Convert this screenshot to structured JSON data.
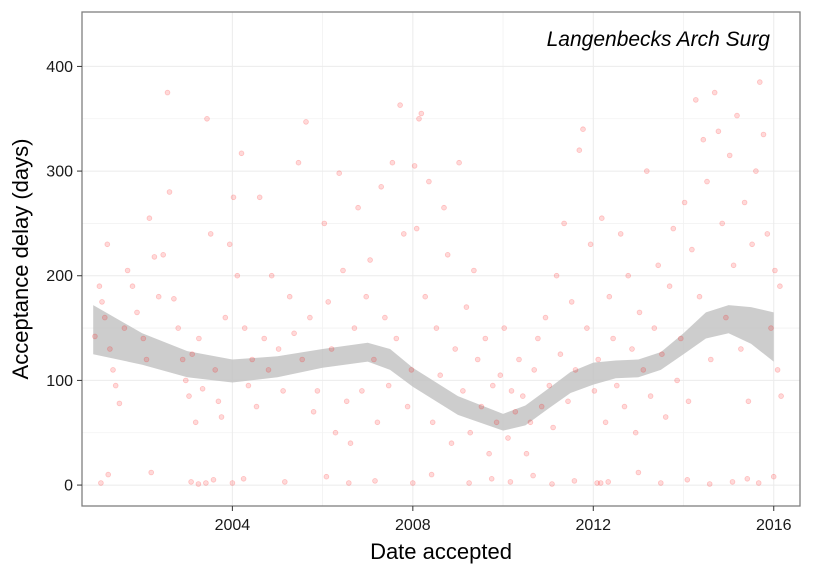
{
  "chart_data": {
    "type": "scatter",
    "title": "",
    "annotation": "Langenbecks Arch Surg",
    "xlabel": "Date accepted",
    "ylabel": "Acceptance delay (days)",
    "xlim": [
      "2000-09-01",
      "2016-08-01"
    ],
    "ylim": [
      -20,
      452
    ],
    "x_ticks": [
      "2004",
      "2008",
      "2012",
      "2016"
    ],
    "y_ticks": [
      0,
      100,
      200,
      300,
      400
    ],
    "grid": true,
    "legend": "none",
    "point_color": "#ff0000",
    "point_opacity": 0.15,
    "band_color": "#bfbfbf",
    "points": [
      [
        "2000-12-15",
        142
      ],
      [
        "2001-01-20",
        190
      ],
      [
        "2001-02-10",
        175
      ],
      [
        "2001-03-05",
        160
      ],
      [
        "2001-03-25",
        230
      ],
      [
        "2001-04-15",
        130
      ],
      [
        "2001-05-10",
        110
      ],
      [
        "2001-06-01",
        95
      ],
      [
        "2001-07-01",
        78
      ],
      [
        "2001-08-10",
        150
      ],
      [
        "2001-09-05",
        205
      ],
      [
        "2001-10-15",
        190
      ],
      [
        "2001-11-20",
        165
      ],
      [
        "2002-01-10",
        140
      ],
      [
        "2002-02-05",
        120
      ],
      [
        "2002-03-01",
        255
      ],
      [
        "2002-04-10",
        218
      ],
      [
        "2002-05-15",
        180
      ],
      [
        "2002-06-20",
        220
      ],
      [
        "2002-07-25",
        375
      ],
      [
        "2002-08-10",
        280
      ],
      [
        "2002-09-15",
        178
      ],
      [
        "2002-10-20",
        150
      ],
      [
        "2002-11-25",
        120
      ],
      [
        "2002-12-20",
        100
      ],
      [
        "2003-01-15",
        85
      ],
      [
        "2003-02-10",
        125
      ],
      [
        "2003-03-10",
        60
      ],
      [
        "2003-04-05",
        140
      ],
      [
        "2003-05-05",
        92
      ],
      [
        "2003-06-10",
        350
      ],
      [
        "2003-07-10",
        240
      ],
      [
        "2003-08-15",
        110
      ],
      [
        "2003-09-10",
        80
      ],
      [
        "2003-10-05",
        65
      ],
      [
        "2003-11-05",
        160
      ],
      [
        "2003-12-10",
        230
      ],
      [
        "2004-01-10",
        275
      ],
      [
        "2004-02-10",
        200
      ],
      [
        "2004-03-15",
        317
      ],
      [
        "2004-04-10",
        150
      ],
      [
        "2004-05-10",
        95
      ],
      [
        "2004-06-10",
        120
      ],
      [
        "2004-07-15",
        75
      ],
      [
        "2004-08-10",
        275
      ],
      [
        "2004-09-15",
        140
      ],
      [
        "2004-10-20",
        110
      ],
      [
        "2004-11-15",
        200
      ],
      [
        "2005-01-10",
        130
      ],
      [
        "2005-02-15",
        90
      ],
      [
        "2005-04-10",
        180
      ],
      [
        "2005-05-15",
        145
      ],
      [
        "2005-06-20",
        308
      ],
      [
        "2005-07-20",
        120
      ],
      [
        "2005-08-20",
        347
      ],
      [
        "2005-09-20",
        160
      ],
      [
        "2005-10-20",
        70
      ],
      [
        "2005-11-20",
        90
      ],
      [
        "2006-01-15",
        250
      ],
      [
        "2006-02-15",
        175
      ],
      [
        "2006-03-15",
        130
      ],
      [
        "2006-04-15",
        50
      ],
      [
        "2006-05-15",
        298
      ],
      [
        "2006-06-15",
        205
      ],
      [
        "2006-07-15",
        80
      ],
      [
        "2006-08-15",
        40
      ],
      [
        "2006-09-15",
        150
      ],
      [
        "2006-10-15",
        265
      ],
      [
        "2006-11-15",
        90
      ],
      [
        "2006-12-20",
        180
      ],
      [
        "2007-01-20",
        215
      ],
      [
        "2007-02-20",
        120
      ],
      [
        "2007-03-20",
        60
      ],
      [
        "2007-04-20",
        285
      ],
      [
        "2007-05-20",
        160
      ],
      [
        "2007-06-20",
        95
      ],
      [
        "2007-07-20",
        308
      ],
      [
        "2007-08-20",
        140
      ],
      [
        "2007-09-20",
        363
      ],
      [
        "2007-10-20",
        240
      ],
      [
        "2007-11-20",
        75
      ],
      [
        "2007-12-20",
        110
      ],
      [
        "2008-01-15",
        305
      ],
      [
        "2008-02-01",
        245
      ],
      [
        "2008-02-20",
        350
      ],
      [
        "2008-03-10",
        355
      ],
      [
        "2008-04-10",
        180
      ],
      [
        "2008-05-10",
        290
      ],
      [
        "2008-06-10",
        60
      ],
      [
        "2008-07-10",
        150
      ],
      [
        "2008-08-10",
        105
      ],
      [
        "2008-09-10",
        265
      ],
      [
        "2008-10-10",
        220
      ],
      [
        "2008-11-10",
        40
      ],
      [
        "2008-12-10",
        130
      ],
      [
        "2009-01-10",
        308
      ],
      [
        "2009-02-10",
        90
      ],
      [
        "2009-03-10",
        170
      ],
      [
        "2009-04-10",
        50
      ],
      [
        "2009-05-10",
        205
      ],
      [
        "2009-06-10",
        120
      ],
      [
        "2009-07-10",
        75
      ],
      [
        "2009-08-10",
        140
      ],
      [
        "2009-09-10",
        30
      ],
      [
        "2009-10-10",
        95
      ],
      [
        "2009-11-10",
        60
      ],
      [
        "2009-12-10",
        105
      ],
      [
        "2010-01-10",
        150
      ],
      [
        "2010-02-10",
        45
      ],
      [
        "2010-03-10",
        90
      ],
      [
        "2010-04-10",
        70
      ],
      [
        "2010-05-10",
        120
      ],
      [
        "2010-06-10",
        85
      ],
      [
        "2010-07-10",
        30
      ],
      [
        "2010-08-10",
        60
      ],
      [
        "2010-09-10",
        110
      ],
      [
        "2010-10-10",
        140
      ],
      [
        "2010-11-10",
        75
      ],
      [
        "2010-12-10",
        160
      ],
      [
        "2011-01-10",
        95
      ],
      [
        "2011-02-10",
        55
      ],
      [
        "2011-03-10",
        200
      ],
      [
        "2011-04-10",
        125
      ],
      [
        "2011-05-10",
        250
      ],
      [
        "2011-06-10",
        80
      ],
      [
        "2011-07-10",
        175
      ],
      [
        "2011-08-10",
        110
      ],
      [
        "2011-09-10",
        320
      ],
      [
        "2011-10-10",
        340
      ],
      [
        "2011-11-10",
        150
      ],
      [
        "2011-12-10",
        230
      ],
      [
        "2012-01-10",
        90
      ],
      [
        "2012-02-10",
        120
      ],
      [
        "2012-03-10",
        255
      ],
      [
        "2012-04-10",
        60
      ],
      [
        "2012-05-10",
        180
      ],
      [
        "2012-06-10",
        140
      ],
      [
        "2012-07-10",
        95
      ],
      [
        "2012-08-10",
        240
      ],
      [
        "2012-09-10",
        75
      ],
      [
        "2012-10-10",
        200
      ],
      [
        "2012-11-10",
        130
      ],
      [
        "2012-12-10",
        50
      ],
      [
        "2013-01-10",
        165
      ],
      [
        "2013-02-10",
        110
      ],
      [
        "2013-03-10",
        300
      ],
      [
        "2013-04-10",
        85
      ],
      [
        "2013-05-10",
        150
      ],
      [
        "2013-06-10",
        210
      ],
      [
        "2013-07-10",
        125
      ],
      [
        "2013-08-10",
        65
      ],
      [
        "2013-09-10",
        190
      ],
      [
        "2013-10-10",
        245
      ],
      [
        "2013-11-10",
        100
      ],
      [
        "2013-12-10",
        140
      ],
      [
        "2014-01-10",
        270
      ],
      [
        "2014-02-10",
        80
      ],
      [
        "2014-03-10",
        225
      ],
      [
        "2014-04-10",
        368
      ],
      [
        "2014-05-10",
        180
      ],
      [
        "2014-06-10",
        330
      ],
      [
        "2014-07-10",
        290
      ],
      [
        "2014-08-10",
        120
      ],
      [
        "2014-09-10",
        375
      ],
      [
        "2014-10-10",
        338
      ],
      [
        "2014-11-10",
        250
      ],
      [
        "2014-12-10",
        160
      ],
      [
        "2015-01-10",
        315
      ],
      [
        "2015-02-10",
        210
      ],
      [
        "2015-03-10",
        353
      ],
      [
        "2015-04-10",
        130
      ],
      [
        "2015-05-10",
        270
      ],
      [
        "2015-06-10",
        80
      ],
      [
        "2015-07-10",
        230
      ],
      [
        "2015-08-10",
        300
      ],
      [
        "2015-09-10",
        385
      ],
      [
        "2015-10-10",
        335
      ],
      [
        "2015-11-10",
        240
      ],
      [
        "2015-12-10",
        150
      ],
      [
        "2016-01-10",
        205
      ],
      [
        "2016-02-01",
        110
      ],
      [
        "2016-02-20",
        190
      ],
      [
        "2016-03-01",
        85
      ],
      [
        "2001-02-01",
        2
      ],
      [
        "2001-04-01",
        10
      ],
      [
        "2002-03-15",
        12
      ],
      [
        "2003-02-01",
        3
      ],
      [
        "2003-04-01",
        1
      ],
      [
        "2003-06-01",
        2
      ],
      [
        "2003-08-01",
        5
      ],
      [
        "2004-01-01",
        2
      ],
      [
        "2004-04-01",
        6
      ],
      [
        "2005-03-01",
        3
      ],
      [
        "2006-02-01",
        8
      ],
      [
        "2006-08-01",
        2
      ],
      [
        "2007-03-01",
        4
      ],
      [
        "2008-01-01",
        2
      ],
      [
        "2008-06-01",
        10
      ],
      [
        "2009-04-01",
        2
      ],
      [
        "2009-10-01",
        6
      ],
      [
        "2010-03-01",
        3
      ],
      [
        "2010-09-01",
        9
      ],
      [
        "2011-02-01",
        1
      ],
      [
        "2011-08-01",
        4
      ],
      [
        "2012-02-01",
        2
      ],
      [
        "2012-03-01",
        2
      ],
      [
        "2012-05-01",
        3
      ],
      [
        "2013-01-01",
        12
      ],
      [
        "2013-07-01",
        2
      ],
      [
        "2014-02-01",
        5
      ],
      [
        "2014-08-01",
        1
      ],
      [
        "2015-02-01",
        3
      ],
      [
        "2015-06-01",
        6
      ],
      [
        "2015-09-01",
        2
      ],
      [
        "2016-01-01",
        8
      ]
    ],
    "smooth_band": [
      {
        "x": "2000-12-01",
        "lo": 125,
        "hi": 172
      },
      {
        "x": "2002-01-01",
        "lo": 115,
        "hi": 145
      },
      {
        "x": "2003-01-01",
        "lo": 103,
        "hi": 128
      },
      {
        "x": "2004-01-01",
        "lo": 98,
        "hi": 120
      },
      {
        "x": "2005-01-01",
        "lo": 103,
        "hi": 123
      },
      {
        "x": "2006-01-01",
        "lo": 112,
        "hi": 130
      },
      {
        "x": "2007-01-01",
        "lo": 118,
        "hi": 136
      },
      {
        "x": "2007-07-01",
        "lo": 110,
        "hi": 130
      },
      {
        "x": "2008-01-01",
        "lo": 94,
        "hi": 112
      },
      {
        "x": "2009-01-01",
        "lo": 67,
        "hi": 85
      },
      {
        "x": "2010-01-01",
        "lo": 52,
        "hi": 68
      },
      {
        "x": "2010-07-01",
        "lo": 57,
        "hi": 76
      },
      {
        "x": "2011-01-01",
        "lo": 73,
        "hi": 92
      },
      {
        "x": "2011-07-01",
        "lo": 88,
        "hi": 108
      },
      {
        "x": "2012-01-01",
        "lo": 96,
        "hi": 117
      },
      {
        "x": "2012-07-01",
        "lo": 102,
        "hi": 119
      },
      {
        "x": "2013-01-01",
        "lo": 103,
        "hi": 120
      },
      {
        "x": "2013-07-01",
        "lo": 110,
        "hi": 127
      },
      {
        "x": "2014-01-01",
        "lo": 125,
        "hi": 145
      },
      {
        "x": "2014-07-01",
        "lo": 140,
        "hi": 165
      },
      {
        "x": "2015-01-01",
        "lo": 145,
        "hi": 172
      },
      {
        "x": "2015-07-01",
        "lo": 135,
        "hi": 170
      },
      {
        "x": "2016-01-01",
        "lo": 118,
        "hi": 165
      }
    ]
  }
}
